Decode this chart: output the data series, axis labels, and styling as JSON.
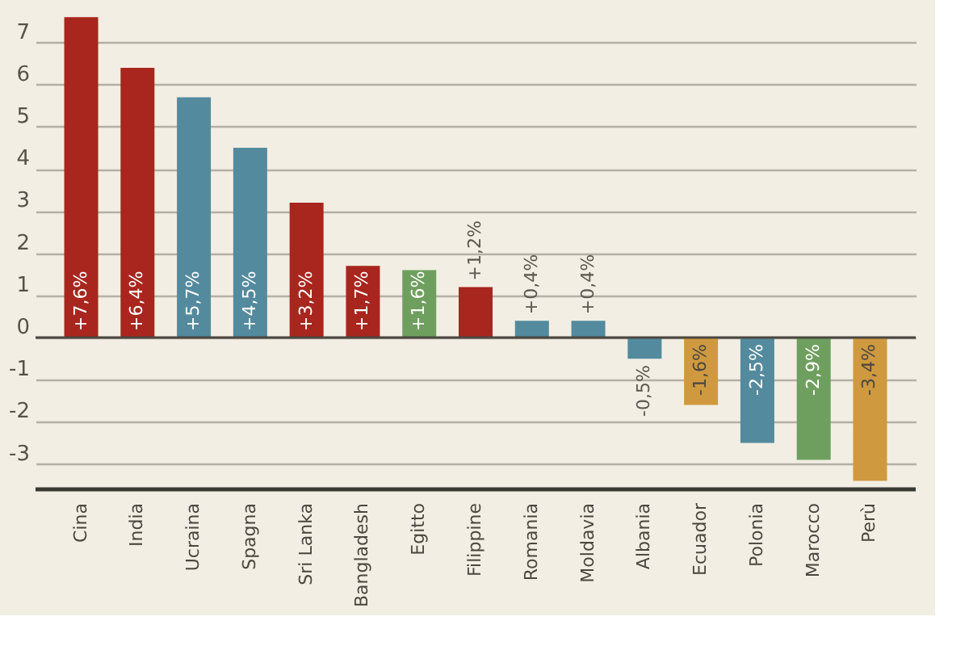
{
  "chart_data": {
    "type": "bar",
    "categories": [
      "Cina",
      "India",
      "Ucraina",
      "Spagna",
      "Sri Lanka",
      "Bangladesh",
      "Egitto",
      "Filippine",
      "Romania",
      "Moldavia",
      "Albania",
      "Ecuador",
      "Polonia",
      "Marocco",
      "Perù"
    ],
    "values": [
      7.6,
      6.4,
      5.7,
      4.5,
      3.2,
      1.7,
      1.6,
      1.2,
      0.4,
      0.4,
      -0.5,
      -1.6,
      -2.5,
      -2.9,
      -3.4
    ],
    "colors": [
      "#a8261e",
      "#a8261e",
      "#538a9e",
      "#538a9e",
      "#a8261e",
      "#a8261e",
      "#6f9f5f",
      "#a8261e",
      "#538a9e",
      "#538a9e",
      "#538a9e",
      "#cf993f",
      "#538a9e",
      "#6f9f5f",
      "#cf993f"
    ],
    "value_labels": [
      "+7,6%",
      "+6,4%",
      "+5,7%",
      "+4,5%",
      "+3,2%",
      "+1,7%",
      "+1,6%",
      "+1,2%",
      "+0,4%",
      "+0,4%",
      "-0,5%",
      "-1,6%",
      "-2,5%",
      "-2,9%",
      "-3,4%"
    ],
    "ylim": [
      -3.6,
      7.7
    ],
    "yticks": [
      -3,
      -2,
      -1,
      0,
      1,
      2,
      3,
      4,
      5,
      6,
      7
    ],
    "ref_lines": [
      {
        "axis": "y",
        "value": 0,
        "color": "#4a4740"
      }
    ],
    "grid": "y"
  }
}
